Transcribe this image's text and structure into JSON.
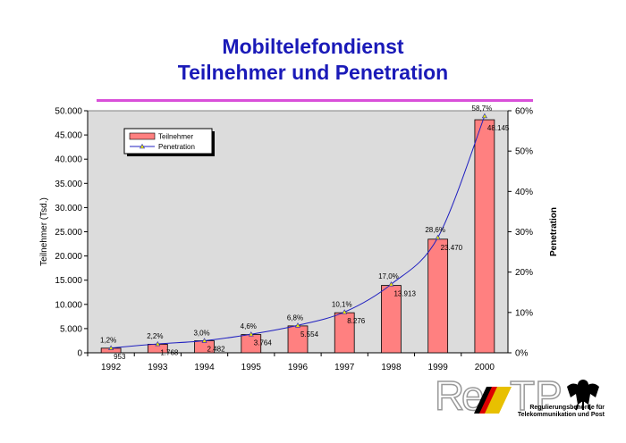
{
  "header": {
    "title_line1": "Mobiltelefondienst",
    "title_line2": "Teilnehmer und Penetration"
  },
  "chart_data": {
    "type": "bar",
    "title": "Mobiltelefondienst Teilnehmer und Penetration",
    "categories": [
      "1992",
      "1993",
      "1994",
      "1995",
      "1996",
      "1997",
      "1998",
      "1999",
      "2000"
    ],
    "series": [
      {
        "name": "Teilnehmer",
        "type": "bar",
        "axis": "left",
        "values": [
          953,
          1768,
          2482,
          3764,
          5554,
          8276,
          13913,
          23470,
          48145
        ],
        "labels": [
          "953",
          "1.768",
          "2.482",
          "3.764",
          "5.554",
          "8.276",
          "13.913",
          "23.470",
          "48.145"
        ],
        "color": "#ff8080"
      },
      {
        "name": "Penetration",
        "type": "line",
        "axis": "right",
        "values": [
          1.2,
          2.2,
          3.0,
          4.6,
          6.8,
          10.1,
          17.0,
          28.6,
          58.7
        ],
        "labels": [
          "1,2%",
          "2,2%",
          "3,0%",
          "4,6%",
          "6,8%",
          "10,1%",
          "17,0%",
          "28,6%",
          "58,7%"
        ],
        "color": "#2020c0"
      }
    ],
    "ylabel": "Teilnehmer (Tsd.)",
    "y2label": "Penetration",
    "ylim": [
      0,
      50000
    ],
    "y2lim": [
      0,
      60
    ],
    "yticks": [
      "0",
      "5.000",
      "10.000",
      "15.000",
      "20.000",
      "25.000",
      "30.000",
      "35.000",
      "40.000",
      "45.000",
      "50.000"
    ],
    "y2ticks": [
      "0%",
      "10%",
      "20%",
      "30%",
      "40%",
      "50%",
      "60%"
    ],
    "legend_position": "top-left",
    "plot_background": "#dcdcdc"
  },
  "footer": {
    "logo_text": "RegTP",
    "authority_line1": "Regulierungsbehörde für",
    "authority_line2": "Telekommunikation und Post"
  }
}
